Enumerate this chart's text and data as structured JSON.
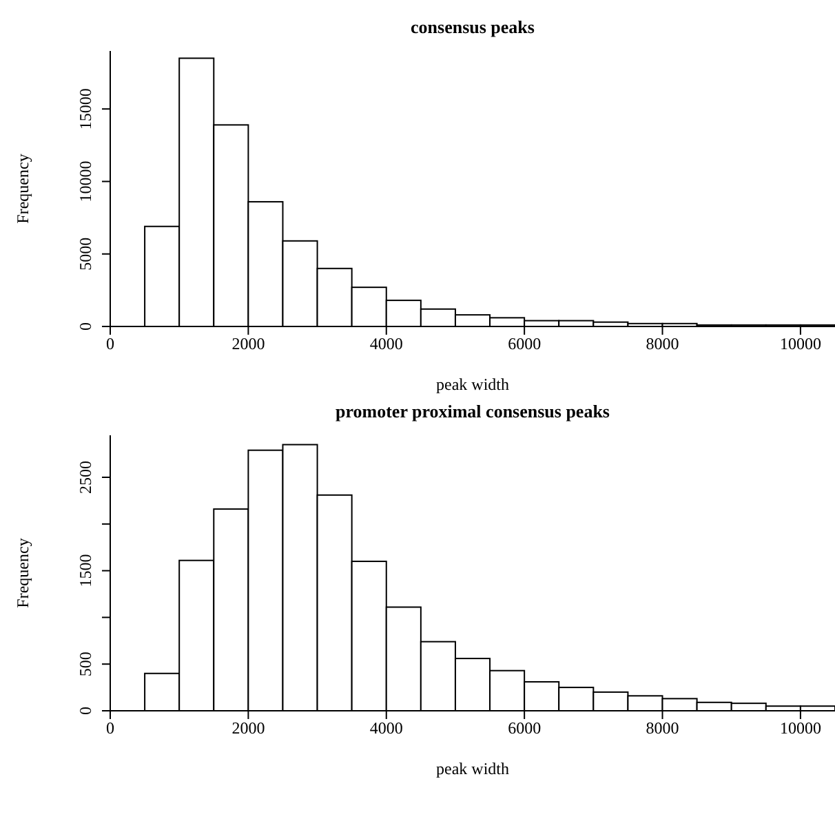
{
  "chart_data": [
    {
      "type": "histogram",
      "title": "consensus peaks",
      "xlabel": "peak width",
      "ylabel": "Frequency",
      "bins": [
        0,
        500,
        1000,
        1500,
        2000,
        2500,
        3000,
        3500,
        4000,
        4500,
        5000,
        5500,
        6000,
        6500,
        7000,
        7500,
        8000,
        8500,
        9000,
        9500,
        10000,
        10500
      ],
      "values": [
        0,
        6900,
        18500,
        13900,
        8600,
        5900,
        4000,
        2700,
        1800,
        1200,
        800,
        600,
        400,
        400,
        300,
        200,
        200,
        100,
        100,
        100,
        100
      ],
      "color": "#ffffff",
      "xlim": [
        0,
        10500
      ],
      "xticks": [
        0,
        2000,
        4000,
        6000,
        8000,
        10000
      ],
      "ylim": [
        0,
        19000
      ],
      "yticks": [
        0,
        5000,
        10000,
        15000
      ]
    },
    {
      "type": "histogram",
      "title": "promoter proximal consensus peaks",
      "xlabel": "peak width",
      "ylabel": "Frequency",
      "bins": [
        500,
        1000,
        1500,
        2000,
        2500,
        3000,
        3500,
        4000,
        4500,
        5000,
        5500,
        6000,
        6500,
        7000,
        7500,
        8000,
        8500,
        9000,
        9500,
        10000,
        10500
      ],
      "values": [
        400,
        1610,
        2160,
        2790,
        2850,
        2310,
        1600,
        1110,
        740,
        560,
        430,
        310,
        250,
        200,
        160,
        130,
        90,
        80,
        50,
        50
      ],
      "color": "#ffffff",
      "xlim": [
        0,
        10500
      ],
      "xticks": [
        0,
        2000,
        4000,
        6000,
        8000,
        10000
      ],
      "ylim": [
        0,
        2950
      ],
      "yticks": [
        0,
        500,
        {
          "value": 1000,
          "label": null
        },
        1500,
        {
          "value": 2000,
          "label": null
        },
        2500
      ]
    }
  ]
}
